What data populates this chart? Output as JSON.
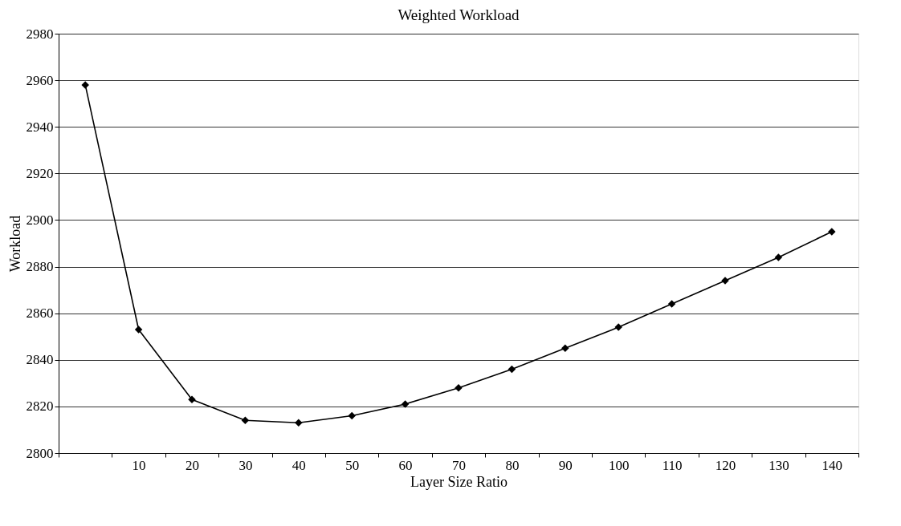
{
  "chart_data": {
    "type": "line",
    "title": "Weighted Workload",
    "xlabel": "Layer Size Ratio",
    "ylabel": "Workload",
    "categories": [
      null,
      "10",
      "20",
      "30",
      "40",
      "50",
      "60",
      "70",
      "80",
      "90",
      "100",
      "110",
      "120",
      "130",
      "140"
    ],
    "series": [
      {
        "color": "#000000",
        "values": [
          2958,
          2853,
          2823,
          2814,
          2813,
          2816,
          2821,
          2828,
          2836,
          2845,
          2854,
          2864,
          2874,
          2884,
          2895
        ]
      }
    ],
    "ylim": [
      2800,
      2980
    ],
    "yticks": [
      2800,
      2820,
      2840,
      2860,
      2880,
      2900,
      2920,
      2940,
      2960,
      2980
    ],
    "grid": "y",
    "marker": "diamond",
    "line_style": "solid"
  }
}
